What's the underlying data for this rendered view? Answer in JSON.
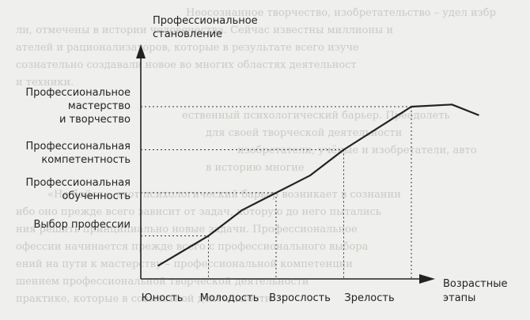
{
  "chart_data": {
    "type": "line",
    "ylabel": [
      "Профессиональное",
      "становление"
    ],
    "xlabel": [
      "Возрастные",
      "этапы"
    ],
    "x_ticks": [
      "Юность",
      "Молодость",
      "Взрослость",
      "Зрелость"
    ],
    "y_ticks": [
      {
        "lines": [
          "Выбор профессии"
        ],
        "level": 1
      },
      {
        "lines": [
          "Профессиональная",
          "обученность"
        ],
        "level": 2
      },
      {
        "lines": [
          "Профессиональная",
          "компетентность"
        ],
        "level": 3
      },
      {
        "lines": [
          "Профессиональное",
          "мастерство",
          "и творчество"
        ],
        "level": 4
      }
    ],
    "series": [
      {
        "points": [
          [
            0.25,
            0.3
          ],
          [
            1,
            1
          ],
          [
            1.5,
            1.6
          ],
          [
            2,
            2
          ],
          [
            2.5,
            2.4
          ],
          [
            3,
            3
          ],
          [
            4,
            4
          ],
          [
            4.6,
            4.05
          ],
          [
            5,
            3.8
          ]
        ]
      }
    ],
    "grid": false
  }
}
